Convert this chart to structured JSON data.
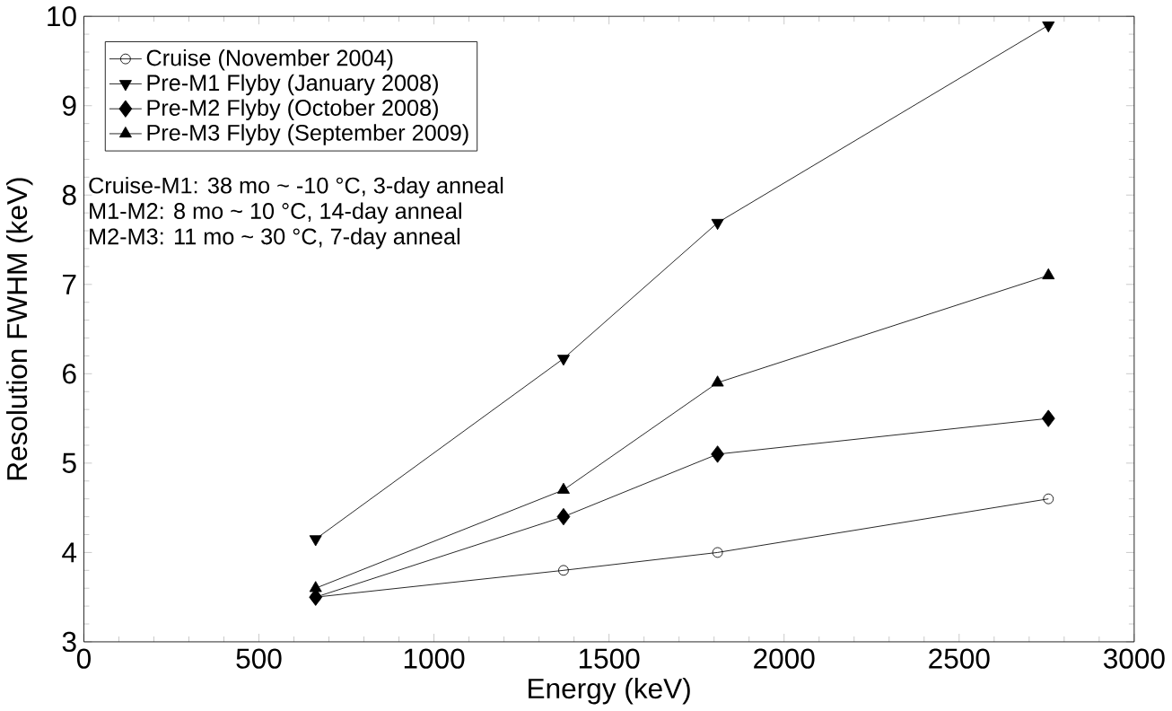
{
  "chart_data": {
    "type": "line",
    "xlabel": "Energy (keV)",
    "ylabel": "Resolution FWHM (keV)",
    "x": [
      662,
      1370,
      1810,
      2755
    ],
    "series": [
      {
        "name": "Cruise (November 2004)",
        "color": "#000000",
        "marker": "circle",
        "values": [
          3.5,
          3.8,
          4.0,
          4.6
        ]
      },
      {
        "name": "Pre-M1 Flyby (January 2008)",
        "color": "#000000",
        "marker": "triangle",
        "values": [
          4.15,
          6.17,
          7.69,
          9.9
        ]
      },
      {
        "name": "Pre-M2 Flyby (October 2008)",
        "color": "#000000",
        "marker": "diamond",
        "values": [
          3.5,
          4.4,
          5.1,
          5.5
        ]
      },
      {
        "name": "Pre-M3 Flyby (September 2009)",
        "color": "#000000",
        "marker": "triangle",
        "values": [
          3.6,
          4.7,
          5.9,
          7.1
        ]
      }
    ],
    "xlim": [
      0,
      3000
    ],
    "xticks": [
      0,
      500,
      1000,
      1500,
      2000,
      2500,
      3000
    ],
    "ylim": [
      3,
      10
    ],
    "yticks": [
      3,
      4,
      5,
      6,
      7,
      8,
      9,
      10
    ],
    "legend": "top left",
    "grid": false,
    "line_style": "solid",
    "annotations": [
      "Cruise-M1: 38 mo ~ -10 °C, 3-day anneal",
      "M1-M2: 8 mo ~ 10 °C, 14-day anneal",
      "M2-M3: 11 mo ~ 30 °C, 7-day anneal"
    ]
  }
}
